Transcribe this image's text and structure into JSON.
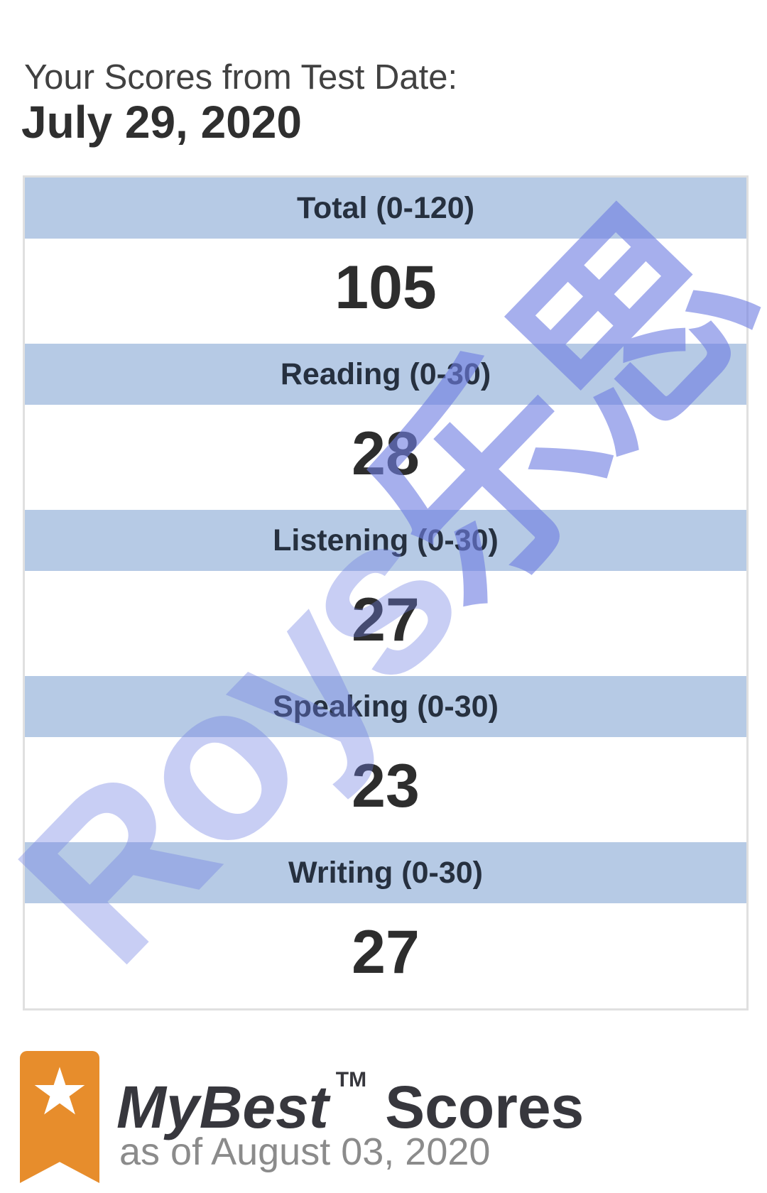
{
  "page": {
    "heading_line1": "Your Scores from Test Date:",
    "heading_date": "July 29, 2020"
  },
  "scores_table": {
    "rows": [
      {
        "label": "Total (0-120)",
        "score": "105"
      },
      {
        "label": "Reading (0-30)",
        "score": "28"
      },
      {
        "label": "Listening (0-30)",
        "score": "27"
      },
      {
        "label": "Speaking (0-30)",
        "score": "23"
      },
      {
        "label": "Writing (0-30)",
        "score": "27"
      }
    ],
    "colors": {
      "header_bg": "#b6cae5",
      "header_text": "#26303f",
      "score_text": "#2d2d2d",
      "table_border": "#e0e0e0"
    }
  },
  "mybest": {
    "title_brand": "MyBest",
    "title_tm": "TM",
    "title_rest": "Scores",
    "subtitle": "as of August 03, 2020",
    "colors": {
      "ribbon_orange": "#e78d2c",
      "heading_text": "#37373d",
      "subtitle_text": "#8b8b8b"
    },
    "star_icon_glyph": "★"
  },
  "watermark": {
    "text_latin": "Roys",
    "text_cjk": "乐思",
    "color": "#6f7ee2"
  }
}
